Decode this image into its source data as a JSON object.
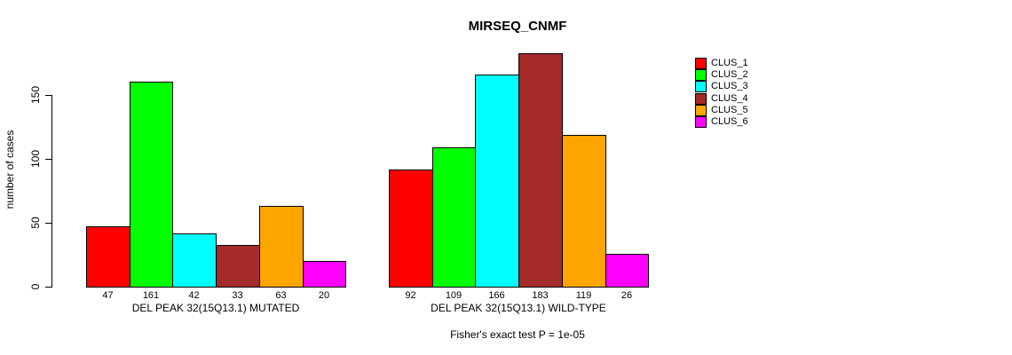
{
  "title": "MIRSEQ_CNMF",
  "subtitle": "Fisher's exact test P = 1e-05",
  "chart_data": {
    "type": "bar",
    "title": "MIRSEQ_CNMF",
    "ylabel": "number of cases",
    "xlabel": "",
    "yticks": [
      0,
      50,
      100,
      150
    ],
    "ylim": [
      0,
      185
    ],
    "grid": false,
    "legend_position": "top-right",
    "categories": [
      "DEL PEAK 32(15Q13.1) MUTATED",
      "DEL PEAK 32(15Q13.1) WILD-TYPE"
    ],
    "series": [
      {
        "name": "CLUS_1",
        "color": "#FF0000",
        "values": [
          47,
          92
        ]
      },
      {
        "name": "CLUS_2",
        "color": "#00FF00",
        "values": [
          161,
          109
        ]
      },
      {
        "name": "CLUS_3",
        "color": "#00FFFF",
        "values": [
          42,
          166
        ]
      },
      {
        "name": "CLUS_4",
        "color": "#A52A2A",
        "values": [
          33,
          183
        ]
      },
      {
        "name": "CLUS_5",
        "color": "#FFA500",
        "values": [
          63,
          119
        ]
      },
      {
        "name": "CLUS_6",
        "color": "#FF00FF",
        "values": [
          20,
          26
        ]
      }
    ],
    "groups": [
      {
        "label": "DEL PEAK 32(15Q13.1) MUTATED",
        "values": [
          47,
          161,
          42,
          33,
          63,
          20
        ]
      },
      {
        "label": "DEL PEAK 32(15Q13.1) WILD-TYPE",
        "values": [
          92,
          109,
          166,
          183,
          119,
          26
        ]
      }
    ],
    "annotation": "Fisher's exact test P = 1e-05"
  }
}
